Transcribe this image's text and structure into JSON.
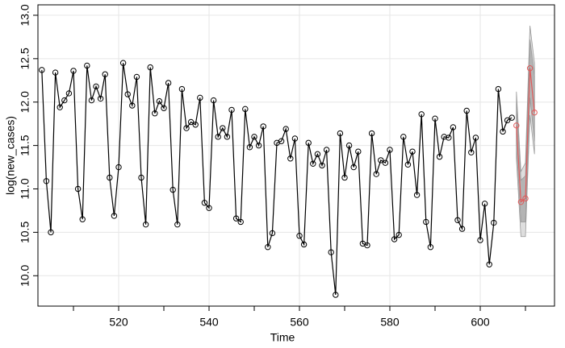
{
  "chart_data": {
    "type": "line",
    "xlabel": "Time",
    "ylabel": "log(new_cases)",
    "xlim": [
      502.14,
      616.43
    ],
    "ylim": [
      9.65,
      13.12
    ],
    "xticks": [
      520,
      540,
      560,
      580,
      600
    ],
    "xminor_ticks": [
      510,
      530,
      550,
      570,
      590,
      610
    ],
    "yticks": [
      {
        "value": 10,
        "label": "10.0"
      },
      10.5,
      {
        "value": 11,
        "label": "11.0"
      },
      11.5,
      {
        "value": 12,
        "label": "12.0"
      },
      12.5,
      {
        "value": 13,
        "label": "13.0"
      }
    ],
    "grid": true,
    "series": [
      {
        "color": "#000000",
        "x": [
          503,
          504,
          505,
          506,
          507,
          508,
          509,
          510,
          511,
          512,
          513,
          514,
          515,
          516,
          517,
          518,
          519,
          520,
          521,
          522,
          523,
          524,
          525,
          526,
          527,
          528,
          529,
          530,
          531,
          532,
          533,
          534,
          535,
          536,
          537,
          538,
          539,
          540,
          541,
          542,
          543,
          544,
          545,
          546,
          547,
          548,
          549,
          550,
          551,
          552,
          553,
          554,
          555,
          556,
          557,
          558,
          559,
          560,
          561,
          562,
          563,
          564,
          565,
          566,
          567,
          568,
          569,
          570,
          571,
          572,
          573,
          574,
          575,
          576,
          577,
          578,
          579,
          580,
          581,
          582,
          583,
          584,
          585,
          586,
          587,
          588,
          589,
          590,
          591,
          592,
          593,
          594,
          595,
          596,
          597,
          598,
          599,
          600,
          601,
          602,
          603,
          604,
          605,
          606,
          607
        ],
        "values": [
          12.37,
          11.09,
          10.5,
          12.34,
          11.94,
          12.02,
          12.1,
          12.36,
          11.0,
          10.65,
          12.42,
          12.02,
          12.18,
          12.04,
          12.32,
          11.13,
          10.69,
          11.25,
          12.45,
          12.09,
          11.96,
          12.29,
          11.13,
          10.59,
          12.4,
          11.87,
          12.01,
          11.93,
          12.22,
          10.99,
          10.59,
          12.15,
          11.7,
          11.77,
          11.74,
          12.05,
          10.84,
          10.78,
          12.02,
          11.6,
          11.7,
          11.6,
          11.91,
          10.66,
          10.62,
          11.92,
          11.48,
          11.6,
          11.5,
          11.72,
          10.33,
          10.49,
          11.53,
          11.55,
          11.69,
          11.35,
          11.58,
          10.46,
          10.36,
          11.53,
          11.29,
          11.4,
          11.27,
          11.45,
          10.27,
          9.78,
          11.64,
          11.13,
          11.5,
          11.25,
          11.43,
          10.37,
          10.35,
          11.64,
          11.17,
          11.33,
          11.3,
          11.45,
          10.42,
          10.47,
          11.6,
          11.28,
          11.43,
          10.93,
          11.86,
          10.62,
          10.33,
          11.81,
          11.37,
          11.6,
          11.59,
          11.71,
          10.64,
          10.54,
          11.9,
          11.42,
          11.59,
          10.41,
          10.83,
          10.13,
          10.61,
          12.15,
          11.66,
          11.79,
          11.82
        ]
      },
      {
        "color": "#e05a5a",
        "x": [
          608,
          609,
          610,
          611,
          612
        ],
        "values": [
          11.73,
          10.85,
          10.89,
          12.39,
          11.88
        ]
      }
    ],
    "bands": [
      {
        "color": "#dedede",
        "x": [
          608,
          609,
          610,
          611,
          612
        ],
        "lower": [
          11.35,
          10.45,
          10.45,
          11.85,
          11.4
        ],
        "upper": [
          12.12,
          11.2,
          11.3,
          12.88,
          12.45
        ]
      },
      {
        "color": "#b4b4b4",
        "x": [
          608,
          609,
          610,
          611,
          612
        ],
        "lower": [
          11.5,
          10.62,
          10.62,
          12.05,
          11.55
        ],
        "upper": [
          11.98,
          11.1,
          11.15,
          12.72,
          12.3
        ]
      }
    ]
  }
}
